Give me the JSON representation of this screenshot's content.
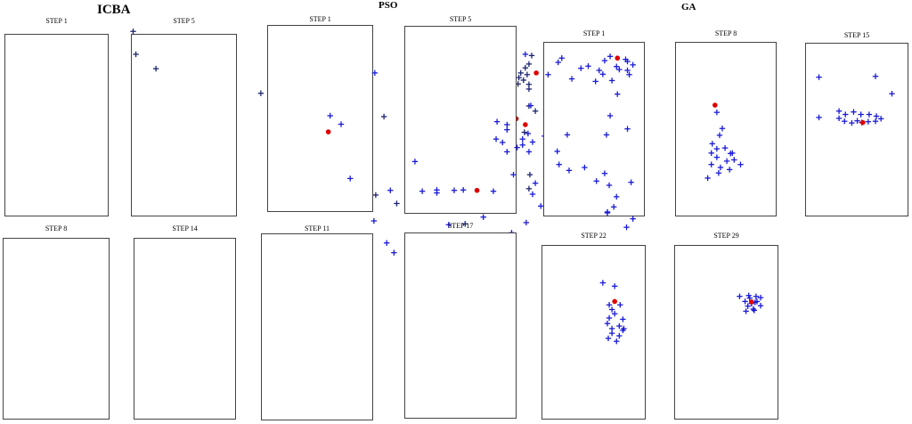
{
  "groups": {
    "icba": "ICBA",
    "pso": "PSO",
    "ga": "GA"
  },
  "marker_colors": {
    "particle": "#1a1ad6",
    "particle_icba": "#1c2470",
    "best": "#e00000"
  },
  "panels": [
    {
      "group": "icba",
      "label": "STEP 1",
      "points": [
        [
          0.544,
          0.211
        ],
        [
          0.58,
          0.199
        ],
        [
          0.531,
          0.242
        ],
        [
          0.58,
          0.25
        ],
        [
          0.587,
          0.262
        ],
        [
          0.421,
          0.275
        ],
        [
          0.534,
          0.287
        ],
        [
          0.552,
          0.27
        ],
        [
          0.575,
          0.312
        ],
        [
          0.309,
          0.309
        ],
        [
          0.286,
          0.22
        ],
        [
          0.368,
          0.358
        ],
        [
          0.531,
          0.42
        ],
        [
          0.521,
          0.483
        ],
        [
          0.581,
          0.412
        ],
        [
          0.51,
          0.528
        ],
        [
          0.58,
          0.445
        ],
        [
          0.197,
          0.358
        ],
        [
          0.234,
          0.404
        ],
        [
          0.2,
          0.568
        ],
        [
          0.456,
          0.272
        ]
      ],
      "best": [
        [
          0.566,
          0.28
        ]
      ]
    },
    {
      "group": "icba",
      "label": "STEP 5",
      "points": [
        [
          0.385,
          0.41
        ],
        [
          0.412,
          0.46
        ],
        [
          0.435,
          0.48
        ],
        [
          0.482,
          0.475
        ],
        [
          0.515,
          0.47
        ],
        [
          0.54,
          0.48
        ],
        [
          0.553,
          0.455
        ],
        [
          0.605,
          0.475
        ],
        [
          0.509,
          0.42
        ]
      ],
      "best": [
        [
          0.532,
          0.475
        ]
      ]
    },
    {
      "group": "icba",
      "label": "STEP 8",
      "points": [
        [
          0.146,
          0.074
        ],
        [
          0.149,
          0.128
        ],
        [
          0.171,
          0.162
        ],
        [
          0.316,
          0.126
        ],
        [
          0.326,
          0.17
        ],
        [
          0.353,
          0.176
        ],
        [
          0.316,
          0.2
        ],
        [
          0.389,
          0.19
        ],
        [
          0.392,
          0.158
        ],
        [
          0.399,
          0.217
        ]
      ],
      "best": [
        [
          0.349,
          0.188
        ]
      ]
    },
    {
      "group": "icba",
      "label": "STEP 14",
      "points": [
        [
          0.583,
          0.131
        ],
        [
          0.58,
          0.151
        ],
        [
          0.576,
          0.16
        ],
        [
          0.571,
          0.172
        ],
        [
          0.569,
          0.183
        ],
        [
          0.578,
          0.176
        ],
        [
          0.568,
          0.198
        ],
        [
          0.58,
          0.21
        ],
        [
          0.574,
          0.189
        ]
      ],
      "best": [
        [
          0.588,
          0.172
        ]
      ]
    },
    {
      "group": "pso",
      "label": "STEP 1",
      "points": [
        [
          0.456,
          0.103
        ],
        [
          0.411,
          0.172
        ],
        [
          0.463,
          0.249
        ],
        [
          0.362,
          0.273
        ],
        [
          0.374,
          0.293
        ],
        [
          0.467,
          0.294
        ],
        [
          0.523,
          0.28
        ],
        [
          0.463,
          0.319
        ],
        [
          0.623,
          0.291
        ],
        [
          0.607,
          0.312
        ],
        [
          0.573,
          0.342
        ],
        [
          0.539,
          0.343
        ],
        [
          0.536,
          0.335
        ],
        [
          0.497,
          0.36
        ],
        [
          0.517,
          0.386
        ],
        [
          0.52,
          0.431
        ],
        [
          0.587,
          0.432
        ],
        [
          0.584,
          0.458
        ],
        [
          0.629,
          0.458
        ],
        [
          0.593,
          0.486
        ],
        [
          0.53,
          0.512
        ],
        [
          0.577,
          0.525
        ],
        [
          0.561,
          0.549
        ],
        [
          0.499,
          0.569
        ],
        [
          0.492,
          0.53
        ],
        [
          0.424,
          0.573
        ],
        [
          0.41,
          0.521
        ],
        [
          0.362,
          0.573
        ],
        [
          0.465,
          0.612
        ],
        [
          0.432,
          0.596
        ]
      ],
      "best": [
        [
          0.36,
          0.311
        ]
      ]
    },
    {
      "group": "pso",
      "label": "STEP 5",
      "points": [
        [
          0.582,
          0.249
        ],
        [
          0.545,
          0.287
        ],
        [
          0.556,
          0.294
        ],
        [
          0.556,
          0.306
        ],
        [
          0.579,
          0.315
        ],
        [
          0.597,
          0.321
        ],
        [
          0.573,
          0.328
        ],
        [
          0.544,
          0.328
        ],
        [
          0.551,
          0.336
        ],
        [
          0.584,
          0.335
        ],
        [
          0.567,
          0.348
        ],
        [
          0.58,
          0.358
        ],
        [
          0.556,
          0.358
        ]
      ],
      "best": [
        [
          0.576,
          0.294
        ]
      ]
    },
    {
      "group": "pso",
      "label": "STEP 11",
      "points": [
        [
          0.455,
          0.381
        ],
        [
          0.384,
          0.421
        ],
        [
          0.428,
          0.449
        ],
        [
          0.463,
          0.451
        ],
        [
          0.479,
          0.448
        ],
        [
          0.479,
          0.455
        ],
        [
          0.498,
          0.449
        ],
        [
          0.508,
          0.448
        ],
        [
          0.541,
          0.451
        ],
        [
          0.563,
          0.412
        ]
      ],
      "best": [
        [
          0.523,
          0.449
        ]
      ]
    },
    {
      "group": "pso",
      "label": "STEP 17",
      "points": [
        [
          0.603,
          0.408
        ],
        [
          0.612,
          0.414
        ],
        [
          0.62,
          0.421
        ],
        [
          0.606,
          0.429
        ],
        [
          0.618,
          0.431
        ],
        [
          0.61,
          0.437
        ],
        [
          0.607,
          0.441
        ],
        [
          0.616,
          0.446
        ],
        [
          0.621,
          0.437
        ]
      ],
      "best": [
        [
          0.618,
          0.423
        ]
      ]
    },
    {
      "group": "ga",
      "label": "STEP 1",
      "points": [
        [
          0.576,
          0.128
        ],
        [
          0.616,
          0.137
        ],
        [
          0.612,
          0.147
        ],
        [
          0.645,
          0.156
        ],
        [
          0.637,
          0.161
        ],
        [
          0.657,
          0.166
        ],
        [
          0.601,
          0.176
        ],
        [
          0.627,
          0.186
        ],
        [
          0.661,
          0.175
        ],
        [
          0.653,
          0.192
        ],
        [
          0.669,
          0.133
        ],
        [
          0.663,
          0.143
        ],
        [
          0.676,
          0.157
        ],
        [
          0.686,
          0.14
        ],
        [
          0.694,
          0.153
        ],
        [
          0.688,
          0.166
        ],
        [
          0.671,
          0.19
        ],
        [
          0.688,
          0.145
        ],
        [
          0.69,
          0.176
        ],
        [
          0.679,
          0.164
        ],
        [
          0.677,
          0.222
        ],
        [
          0.669,
          0.273
        ],
        [
          0.688,
          0.304
        ],
        [
          0.665,
          0.318
        ],
        [
          0.622,
          0.318
        ],
        [
          0.611,
          0.357
        ],
        [
          0.613,
          0.388
        ],
        [
          0.624,
          0.402
        ],
        [
          0.641,
          0.395
        ],
        [
          0.663,
          0.409
        ],
        [
          0.654,
          0.427
        ],
        [
          0.668,
          0.437
        ],
        [
          0.692,
          0.43
        ],
        [
          0.676,
          0.464
        ],
        [
          0.673,
          0.488
        ],
        [
          0.666,
          0.5
        ],
        [
          0.694,
          0.516
        ],
        [
          0.687,
          0.536
        ],
        [
          0.666,
          0.502
        ]
      ],
      "best": [
        [
          0.677,
          0.137
        ]
      ]
    },
    {
      "group": "ga",
      "label": "STEP 8",
      "points": [
        [
          0.786,
          0.265
        ],
        [
          0.792,
          0.303
        ],
        [
          0.789,
          0.319
        ],
        [
          0.781,
          0.339
        ],
        [
          0.786,
          0.351
        ],
        [
          0.795,
          0.349
        ],
        [
          0.78,
          0.361
        ],
        [
          0.801,
          0.362
        ],
        [
          0.786,
          0.371
        ],
        [
          0.797,
          0.38
        ],
        [
          0.805,
          0.377
        ],
        [
          0.78,
          0.388
        ],
        [
          0.79,
          0.395
        ],
        [
          0.8,
          0.4
        ],
        [
          0.788,
          0.408
        ],
        [
          0.812,
          0.388
        ],
        [
          0.803,
          0.361
        ],
        [
          0.776,
          0.42
        ]
      ],
      "best": [
        [
          0.784,
          0.248
        ]
      ]
    },
    {
      "group": "ga",
      "label": "STEP 15",
      "points": [
        [
          0.898,
          0.182
        ],
        [
          0.96,
          0.18
        ],
        [
          0.978,
          0.221
        ],
        [
          0.898,
          0.277
        ],
        [
          0.92,
          0.262
        ],
        [
          0.927,
          0.27
        ],
        [
          0.936,
          0.264
        ],
        [
          0.944,
          0.27
        ],
        [
          0.953,
          0.27
        ],
        [
          0.961,
          0.274
        ],
        [
          0.966,
          0.28
        ],
        [
          0.952,
          0.287
        ],
        [
          0.94,
          0.285
        ],
        [
          0.926,
          0.286
        ],
        [
          0.92,
          0.279
        ],
        [
          0.934,
          0.29
        ],
        [
          0.96,
          0.286
        ],
        [
          0.945,
          0.289
        ]
      ],
      "best": [
        [
          0.946,
          0.289
        ]
      ]
    },
    {
      "group": "ga",
      "label": "STEP 22",
      "points": [
        [
          0.661,
          0.667
        ],
        [
          0.674,
          0.675
        ],
        [
          0.668,
          0.719
        ],
        [
          0.671,
          0.73
        ],
        [
          0.674,
          0.74
        ],
        [
          0.668,
          0.75
        ],
        [
          0.683,
          0.753
        ],
        [
          0.679,
          0.769
        ],
        [
          0.671,
          0.775
        ],
        [
          0.683,
          0.779
        ],
        [
          0.671,
          0.786
        ],
        [
          0.679,
          0.792
        ],
        [
          0.667,
          0.798
        ],
        [
          0.676,
          0.805
        ],
        [
          0.68,
          0.719
        ],
        [
          0.666,
          0.763
        ],
        [
          0.684,
          0.775
        ]
      ],
      "best": [
        [
          0.674,
          0.711
        ]
      ]
    },
    {
      "group": "ga",
      "label": "STEP 29",
      "points": [
        [
          0.811,
          0.699
        ],
        [
          0.821,
          0.697
        ],
        [
          0.829,
          0.699
        ],
        [
          0.822,
          0.703
        ],
        [
          0.817,
          0.711
        ],
        [
          0.828,
          0.713
        ],
        [
          0.824,
          0.716
        ],
        [
          0.82,
          0.722
        ],
        [
          0.826,
          0.729
        ],
        [
          0.818,
          0.734
        ],
        [
          0.827,
          0.732
        ],
        [
          0.834,
          0.721
        ],
        [
          0.83,
          0.711
        ],
        [
          0.834,
          0.702
        ]
      ],
      "best": [
        [
          0.824,
          0.712
        ]
      ]
    }
  ]
}
